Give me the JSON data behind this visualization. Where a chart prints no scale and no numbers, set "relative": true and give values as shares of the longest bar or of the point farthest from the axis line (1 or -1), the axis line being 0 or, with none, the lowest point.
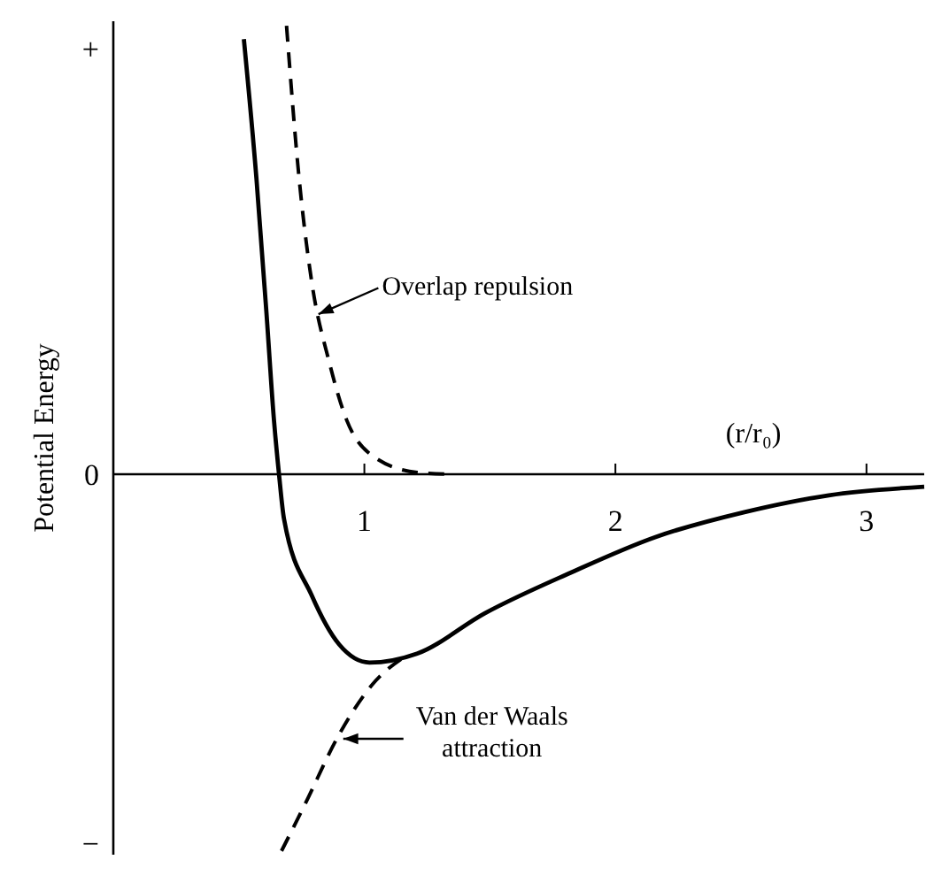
{
  "chart_data": {
    "type": "line",
    "xlabel": "(r/r₀)",
    "ylabel": "Potential Energy",
    "relative": true,
    "xlim": [
      0,
      3.23
    ],
    "xticks": [
      1,
      2,
      3
    ],
    "grid": false,
    "marker": "none",
    "series": [
      {
        "color": "#000000",
        "line_style": "solid",
        "x": [
          0.52,
          0.57,
          0.61,
          0.64,
          0.66,
          0.68,
          0.79,
          0.9,
          1.02,
          1.21,
          1.48,
          1.82,
          2.16,
          2.51,
          2.85,
          3.23
        ],
        "values": [
          0.97,
          0.66,
          0.36,
          0.12,
          0,
          -0.1,
          -0.27,
          -0.38,
          -0.42,
          -0.4,
          -0.31,
          -0.22,
          -0.14,
          -0.085,
          -0.047,
          -0.028
        ]
      },
      {
        "color": "#000000",
        "line_style": "dashed",
        "x": [
          0.69,
          0.74,
          0.79,
          0.86,
          0.93,
          1.03,
          1.21,
          1.34
        ],
        "values": [
          1,
          0.66,
          0.43,
          0.25,
          0.12,
          0.042,
          0.004,
          0
        ]
      },
      {
        "color": "#000000",
        "line_style": "dashed",
        "x": [
          0.67,
          0.76,
          0.9,
          1.03,
          1.18
        ],
        "values": [
          -0.84,
          -0.74,
          -0.58,
          -0.47,
          -0.4
        ]
      }
    ],
    "annotations": [
      "+",
      "0",
      "−",
      {
        "text": "Overlap repulsion",
        "x": 0.83,
        "y": 0.36
      },
      {
        "text": "Van der Waals attraction",
        "x": 0.93,
        "y": -0.59
      }
    ]
  }
}
